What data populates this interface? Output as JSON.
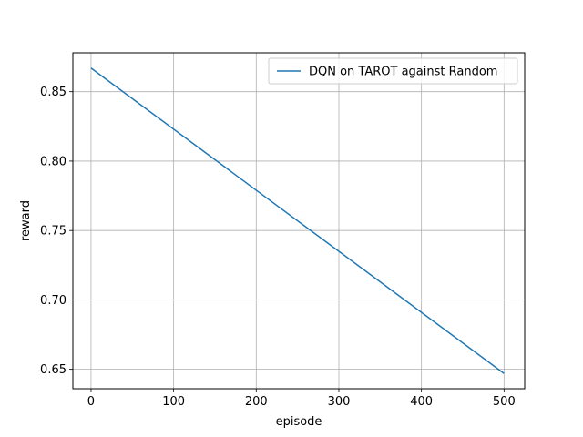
{
  "chart_data": {
    "type": "line",
    "xlabel": "episode",
    "ylabel": "reward",
    "xlim": [
      -22,
      525
    ],
    "ylim": [
      0.636,
      0.878
    ],
    "xticks": [
      0,
      100,
      200,
      300,
      400,
      500
    ],
    "xtick_labels": [
      "0",
      "100",
      "200",
      "300",
      "400",
      "500"
    ],
    "yticks": [
      0.65,
      0.7,
      0.75,
      0.8,
      0.85
    ],
    "ytick_labels": [
      "0.65",
      "0.70",
      "0.75",
      "0.80",
      "0.85"
    ],
    "grid": true,
    "legend_position": "top-right",
    "series": [
      {
        "name": "DQN on TAROT against Random",
        "color": "#1f77b4",
        "x": [
          0,
          500
        ],
        "y": [
          0.867,
          0.647
        ]
      }
    ]
  }
}
